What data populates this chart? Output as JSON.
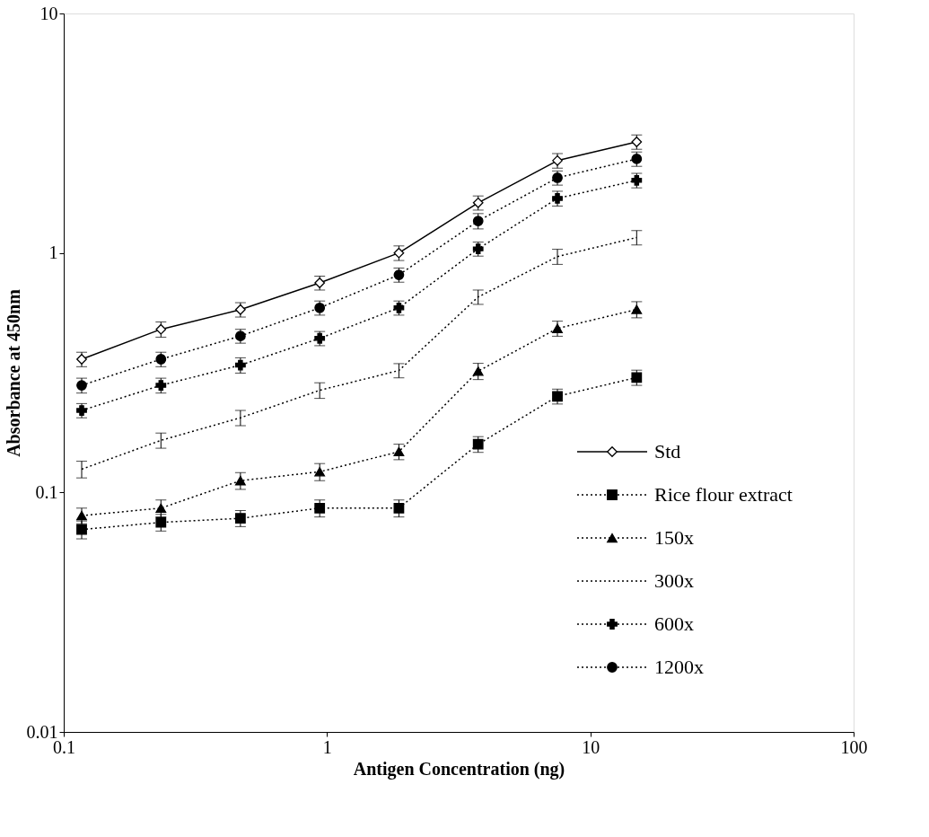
{
  "chart_data": {
    "type": "line",
    "xlabel": "Antigen Concentration (ng)",
    "ylabel": "Absorbance at 450nm",
    "x": [
      0.117,
      0.234,
      0.469,
      0.938,
      1.875,
      3.75,
      7.5,
      15
    ],
    "log": "xy",
    "xlim": [
      0.1,
      100
    ],
    "xticks": [
      0.1,
      1,
      10,
      100
    ],
    "ylim": [
      0.01,
      10
    ],
    "yticks": [
      0.01,
      0.1,
      1,
      10
    ],
    "grid": false,
    "legend": "right",
    "series": [
      {
        "name": "Std",
        "color": "#000000",
        "marker": "diamond",
        "line_style": "solid",
        "values": [
          0.36,
          0.48,
          0.58,
          0.75,
          1.0,
          1.62,
          2.43,
          2.91
        ],
        "errors": [
          0.025,
          0.035,
          0.04,
          0.05,
          0.07,
          0.11,
          0.17,
          0.2
        ]
      },
      {
        "name": "Rice flour extract",
        "color": "#000000",
        "marker": "square",
        "line_style": "dotted",
        "values": [
          0.07,
          0.075,
          0.078,
          0.086,
          0.086,
          0.159,
          0.252,
          0.302
        ],
        "errors": [
          0.006,
          0.006,
          0.006,
          0.007,
          0.007,
          0.012,
          0.018,
          0.022
        ]
      },
      {
        "name": "150x",
        "color": "#000000",
        "marker": "triangle",
        "line_style": "dotted",
        "values": [
          0.08,
          0.086,
          0.112,
          0.122,
          0.148,
          0.321,
          0.484,
          0.581
        ],
        "errors": [
          0.006,
          0.007,
          0.009,
          0.01,
          0.011,
          0.025,
          0.035,
          0.045
        ]
      },
      {
        "name": "300x",
        "color": "#000000",
        "marker": "none",
        "line_style": "dotted",
        "values": [
          0.125,
          0.165,
          0.205,
          0.267,
          0.323,
          0.655,
          0.966,
          1.16
        ],
        "errors": [
          0.01,
          0.012,
          0.015,
          0.02,
          0.022,
          0.045,
          0.07,
          0.08
        ]
      },
      {
        "name": "600x",
        "color": "#000000",
        "marker": "cross",
        "line_style": "dotted",
        "values": [
          0.22,
          0.28,
          0.34,
          0.44,
          0.59,
          1.04,
          1.69,
          2.01
        ],
        "errors": [
          0.015,
          0.02,
          0.025,
          0.03,
          0.04,
          0.07,
          0.12,
          0.14
        ]
      },
      {
        "name": "1200x",
        "color": "#000000",
        "marker": "circle",
        "line_style": "dotted",
        "values": [
          0.28,
          0.36,
          0.45,
          0.59,
          0.81,
          1.36,
          2.06,
          2.47
        ],
        "errors": [
          0.02,
          0.025,
          0.03,
          0.04,
          0.055,
          0.1,
          0.14,
          0.17
        ]
      }
    ]
  }
}
